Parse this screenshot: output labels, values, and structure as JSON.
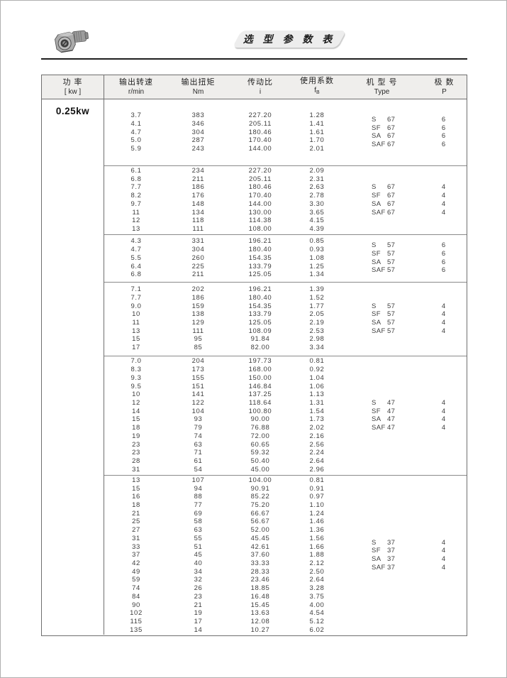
{
  "banner": {
    "badge_title": "选 型 参 数 表",
    "logo_icon": "gearmotor-icon"
  },
  "table": {
    "header": {
      "power_cn": "功  率",
      "power_en": "[ kw ]",
      "speed_cn": "输出转速",
      "speed_en": "r/min",
      "torque_cn": "输出扭矩",
      "torque_en": "Nm",
      "ratio_cn": "传动比",
      "ratio_en": "i",
      "factor_cn": "使用系数",
      "factor_en": "f",
      "factor_en_sub": "B",
      "type_cn": "机 型 号",
      "type_en": "Type",
      "poles_cn": "极  数",
      "poles_en": "P"
    },
    "power_value": "0.25kw",
    "blocks": [
      {
        "rows": [
          [
            "3.7",
            "383",
            "227.20",
            "1.28"
          ],
          [
            "4.1",
            "346",
            "205.11",
            "1.41"
          ],
          [
            "4.7",
            "304",
            "180.46",
            "1.61"
          ],
          [
            "5.0",
            "287",
            "170.40",
            "1.70"
          ],
          [
            "5.9",
            "243",
            "144.00",
            "2.01"
          ]
        ],
        "types": [
          {
            "prefix": "S",
            "size": "67",
            "poles": "6"
          },
          {
            "prefix": "SF",
            "size": "67",
            "poles": "6"
          },
          {
            "prefix": "SA",
            "size": "67",
            "poles": "6"
          },
          {
            "prefix": "SAF",
            "size": "67",
            "poles": "6"
          }
        ]
      },
      {
        "rows": [
          [
            "6.1",
            "234",
            "227.20",
            "2.09"
          ],
          [
            "6.8",
            "211",
            "205.11",
            "2.31"
          ],
          [
            "7.7",
            "186",
            "180.46",
            "2.63"
          ],
          [
            "8.2",
            "176",
            "170.40",
            "2.78"
          ],
          [
            "9.7",
            "148",
            "144.00",
            "3.30"
          ],
          [
            "11",
            "134",
            "130.00",
            "3.65"
          ],
          [
            "12",
            "118",
            "114.38",
            "4.15"
          ],
          [
            "13",
            "111",
            "108.00",
            "4.39"
          ]
        ],
        "types": [
          {
            "prefix": "S",
            "size": "67",
            "poles": "4"
          },
          {
            "prefix": "SF",
            "size": "67",
            "poles": "4"
          },
          {
            "prefix": "SA",
            "size": "67",
            "poles": "4"
          },
          {
            "prefix": "SAF",
            "size": "67",
            "poles": "4"
          }
        ]
      },
      {
        "rows": [
          [
            "4.3",
            "331",
            "196.21",
            "0.85"
          ],
          [
            "4.7",
            "304",
            "180.40",
            "0.93"
          ],
          [
            "5.5",
            "260",
            "154.35",
            "1.08"
          ],
          [
            "6.4",
            "225",
            "133.79",
            "1.25"
          ],
          [
            "6.8",
            "211",
            "125.05",
            "1.34"
          ]
        ],
        "types": [
          {
            "prefix": "S",
            "size": "57",
            "poles": "6"
          },
          {
            "prefix": "SF",
            "size": "57",
            "poles": "6"
          },
          {
            "prefix": "SA",
            "size": "57",
            "poles": "6"
          },
          {
            "prefix": "SAF",
            "size": "57",
            "poles": "6"
          }
        ]
      },
      {
        "rows": [
          [
            "7.1",
            "202",
            "196.21",
            "1.39"
          ],
          [
            "7.7",
            "186",
            "180.40",
            "1.52"
          ],
          [
            "9.0",
            "159",
            "154.35",
            "1.77"
          ],
          [
            "10",
            "138",
            "133.79",
            "2.05"
          ],
          [
            "11",
            "129",
            "125.05",
            "2.19"
          ],
          [
            "13",
            "111",
            "108.09",
            "2.53"
          ],
          [
            "15",
            "95",
            "91.84",
            "2.98"
          ],
          [
            "17",
            "85",
            "82.00",
            "3.34"
          ]
        ],
        "types": [
          {
            "prefix": "S",
            "size": "57",
            "poles": "4"
          },
          {
            "prefix": "SF",
            "size": "57",
            "poles": "4"
          },
          {
            "prefix": "SA",
            "size": "57",
            "poles": "4"
          },
          {
            "prefix": "SAF",
            "size": "57",
            "poles": "4"
          }
        ]
      },
      {
        "rows": [
          [
            "7.0",
            "204",
            "197.73",
            "0.81"
          ],
          [
            "8.3",
            "173",
            "168.00",
            "0.92"
          ],
          [
            "9.3",
            "155",
            "150.00",
            "1.04"
          ],
          [
            "9.5",
            "151",
            "146.84",
            "1.06"
          ],
          [
            "10",
            "141",
            "137.25",
            "1.13"
          ],
          [
            "12",
            "122",
            "118.64",
            "1.31"
          ],
          [
            "14",
            "104",
            "100.80",
            "1.54"
          ],
          [
            "15",
            "93",
            "90.00",
            "1.73"
          ],
          [
            "18",
            "79",
            "76.88",
            "2.02"
          ],
          [
            "19",
            "74",
            "72.00",
            "2.16"
          ],
          [
            "23",
            "63",
            "60.65",
            "2.56"
          ],
          [
            "23",
            "71",
            "59.32",
            "2.24"
          ],
          [
            "28",
            "61",
            "50.40",
            "2.64"
          ],
          [
            "31",
            "54",
            "45.00",
            "2.96"
          ]
        ],
        "types": [
          {
            "prefix": "S",
            "size": "47",
            "poles": "4"
          },
          {
            "prefix": "SF",
            "size": "47",
            "poles": "4"
          },
          {
            "prefix": "SA",
            "size": "47",
            "poles": "4"
          },
          {
            "prefix": "SAF",
            "size": "47",
            "poles": "4"
          }
        ]
      },
      {
        "rows": [
          [
            "13",
            "107",
            "104.00",
            "0.81"
          ],
          [
            "15",
            "94",
            "90.91",
            "0.91"
          ],
          [
            "16",
            "88",
            "85.22",
            "0.97"
          ],
          [
            "18",
            "77",
            "75.20",
            "1.10"
          ],
          [
            "21",
            "69",
            "66.67",
            "1.24"
          ],
          [
            "25",
            "58",
            "56.67",
            "1.46"
          ],
          [
            "27",
            "63",
            "52.00",
            "1.36"
          ],
          [
            "31",
            "55",
            "45.45",
            "1.56"
          ],
          [
            "33",
            "51",
            "42.61",
            "1.66"
          ],
          [
            "37",
            "45",
            "37.60",
            "1.88"
          ],
          [
            "42",
            "40",
            "33.33",
            "2.12"
          ],
          [
            "49",
            "34",
            "28.33",
            "2.50"
          ],
          [
            "59",
            "32",
            "23.46",
            "2.64"
          ],
          [
            "74",
            "26",
            "18.85",
            "3.28"
          ],
          [
            "84",
            "23",
            "16.48",
            "3.75"
          ],
          [
            "90",
            "21",
            "15.45",
            "4.00"
          ],
          [
            "102",
            "19",
            "13.63",
            "4.54"
          ],
          [
            "115",
            "17",
            "12.08",
            "5.12"
          ],
          [
            "135",
            "14",
            "10.27",
            "6.02"
          ]
        ],
        "types": [
          {
            "prefix": "S",
            "size": "37",
            "poles": "4"
          },
          {
            "prefix": "SF",
            "size": "37",
            "poles": "4"
          },
          {
            "prefix": "SA",
            "size": "37",
            "poles": "4"
          },
          {
            "prefix": "SAF",
            "size": "37",
            "poles": "4"
          }
        ]
      }
    ]
  }
}
